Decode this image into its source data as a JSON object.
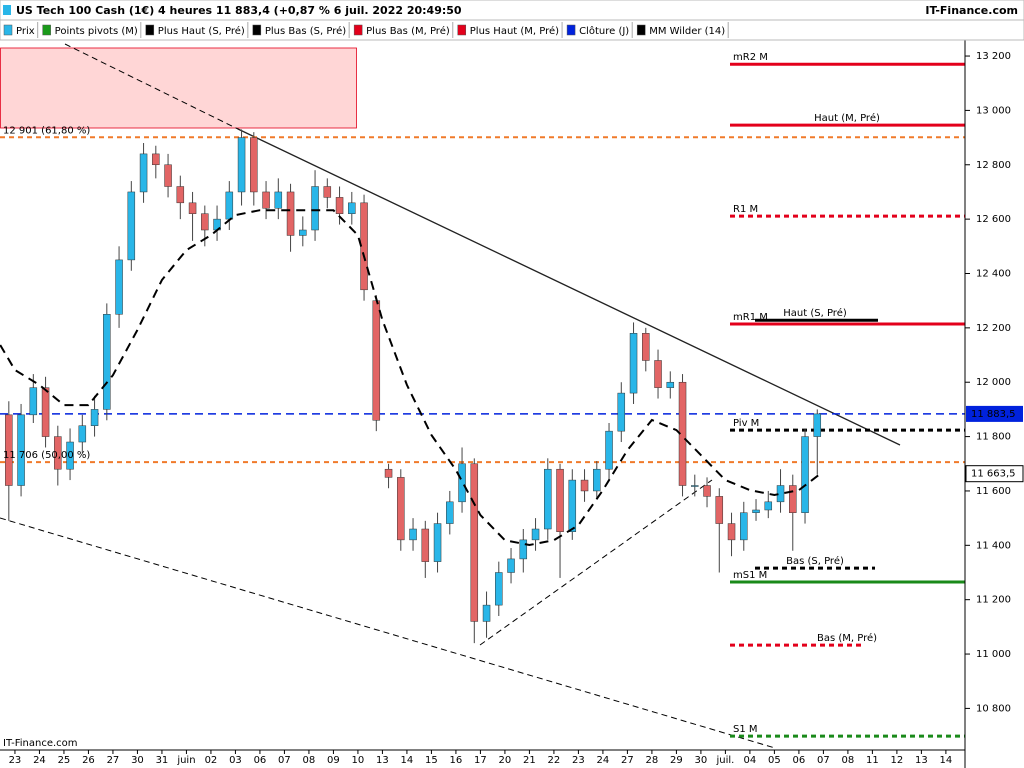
{
  "chart_data": {
    "type": "candlestick",
    "title": "US Tech 100 Cash (1€) 4 heures 11 883,4 (+0,87 % 6 juil. 2022 20:49:50",
    "brand": "IT-Finance.com",
    "footer": "IT-Finance.com",
    "legend": [
      {
        "name": "Prix",
        "color": "#29b6e8"
      },
      {
        "name": "Points pivots (M)",
        "color": "#1a9a1a"
      },
      {
        "name": "Plus Haut (S, Pré)",
        "color": "#000000"
      },
      {
        "name": "Plus Bas (S, Pré)",
        "color": "#000000"
      },
      {
        "name": "Plus Bas (M, Pré)",
        "color": "#e3001b"
      },
      {
        "name": "Plus Haut (M, Pré)",
        "color": "#e3001b"
      },
      {
        "name": "Clôture (J)",
        "color": "#0022dd"
      },
      {
        "name": "MM Wilder (14)",
        "color": "#000000"
      }
    ],
    "up_color": "#29b6e8",
    "down_color": "#e26565",
    "x": [
      -0.25,
      0.25,
      0.75,
      1.25,
      1.75,
      2.25,
      2.75,
      3.25,
      3.75,
      4.25,
      4.75,
      5.25,
      5.75,
      6.25,
      6.75,
      7.25,
      7.75,
      8.25,
      8.75,
      9.25,
      9.75,
      10.25,
      10.75,
      11.25,
      11.75,
      12.25,
      12.75,
      13.25,
      13.75,
      14.25,
      14.75,
      15.25,
      15.75,
      16.25,
      16.75,
      17.25,
      17.75,
      18.25,
      18.75,
      19.25,
      19.75,
      20.25,
      20.75,
      21.25,
      21.75,
      22.25,
      22.75,
      23.25,
      23.75,
      24.25,
      24.75,
      25.25,
      25.75,
      26.25,
      26.75,
      27.25,
      27.75,
      28.25,
      28.75,
      29.25,
      29.75,
      30.25,
      30.75,
      31.25,
      31.75,
      32.25,
      32.75
    ],
    "open": [
      11880,
      11620,
      11880,
      11980,
      11800,
      11680,
      11780,
      11840,
      11900,
      12250,
      12450,
      12700,
      12840,
      12800,
      12720,
      12660,
      12620,
      12560,
      12600,
      12700,
      12900,
      12700,
      12640,
      12700,
      12540,
      12560,
      12720,
      12680,
      12620,
      12660,
      12300,
      11680,
      11650,
      11420,
      11460,
      11340,
      11480,
      11560,
      11700,
      11120,
      11180,
      11300,
      11350,
      11420,
      11460,
      11680,
      11450,
      11640,
      11600,
      11680,
      11820,
      11960,
      12180,
      12080,
      11980,
      12000,
      11620,
      11620,
      11580,
      11480,
      11420,
      11520,
      11530,
      11560,
      11620,
      11520,
      11800
    ],
    "high": [
      11930,
      11920,
      12030,
      12020,
      11840,
      11830,
      11880,
      11950,
      12290,
      12500,
      12740,
      12880,
      12870,
      12840,
      12760,
      12700,
      12650,
      12650,
      12740,
      12930,
      12920,
      12740,
      12750,
      12730,
      12610,
      12780,
      12750,
      12720,
      12700,
      12690,
      12320,
      11700,
      11680,
      11500,
      11490,
      11520,
      11600,
      11760,
      11720,
      11230,
      11340,
      11390,
      11460,
      11500,
      11720,
      11700,
      11680,
      11680,
      11710,
      11850,
      12000,
      12220,
      12200,
      12120,
      12040,
      12030,
      11660,
      11650,
      11610,
      11520,
      11560,
      11570,
      11600,
      11680,
      11660,
      11830,
      11900
    ],
    "low": [
      11490,
      11580,
      11850,
      11760,
      11620,
      11640,
      11740,
      11800,
      11860,
      12200,
      12410,
      12660,
      12750,
      12680,
      12600,
      12520,
      12500,
      12520,
      12560,
      12650,
      12650,
      12600,
      12600,
      12480,
      12500,
      12520,
      12640,
      12580,
      12580,
      12300,
      11820,
      11610,
      11380,
      11380,
      11280,
      11300,
      11440,
      11520,
      11040,
      11060,
      11140,
      11260,
      11300,
      11380,
      11420,
      11280,
      11420,
      11560,
      11570,
      11640,
      11780,
      11920,
      12040,
      11940,
      11940,
      11580,
      11580,
      11540,
      11300,
      11360,
      11380,
      11490,
      11500,
      11520,
      11380,
      11480,
      11660
    ],
    "close": [
      11620,
      11880,
      11980,
      11800,
      11680,
      11780,
      11840,
      11900,
      12250,
      12450,
      12700,
      12840,
      12800,
      12720,
      12660,
      12620,
      12560,
      12600,
      12700,
      12900,
      12700,
      12640,
      12700,
      12540,
      12560,
      12720,
      12680,
      12620,
      12660,
      12340,
      11860,
      11650,
      11420,
      11460,
      11340,
      11480,
      11560,
      11700,
      11120,
      11180,
      11300,
      11350,
      11420,
      11460,
      11680,
      11450,
      11640,
      11600,
      11680,
      11820,
      11960,
      12180,
      12080,
      11980,
      12000,
      11620,
      11620,
      11580,
      11480,
      11420,
      11520,
      11530,
      11560,
      11620,
      11520,
      11800,
      11883.5
    ],
    "series": [
      {
        "name": "MM Wilder (14)",
        "color": "#000000",
        "x": [
          -0.6,
          0,
          1,
          2,
          3,
          4,
          5,
          6,
          7,
          8,
          9,
          10,
          11,
          12,
          13,
          14,
          15,
          16,
          17,
          18,
          19,
          20,
          21,
          22,
          23,
          24,
          25,
          26,
          27,
          28,
          29,
          30,
          31,
          32,
          32.8
        ],
        "values": [
          12137,
          12045,
          11990,
          11916,
          11916,
          12026,
          12192,
          12376,
          12486,
          12541,
          12615,
          12633,
          12633,
          12633,
          12633,
          12541,
          12229,
          11990,
          11806,
          11677,
          11511,
          11419,
          11401,
          11419,
          11474,
          11603,
          11750,
          11861,
          11824,
          11732,
          11640,
          11603,
          11585,
          11603,
          11658
        ]
      }
    ],
    "levels": [
      {
        "label": "mR2 M",
        "value": 13170,
        "color": "#e3001b",
        "style": "solid"
      },
      {
        "label": "Haut (M, Pré)",
        "value": 12946,
        "color": "#e3001b",
        "style": "solid"
      },
      {
        "label": "R1 M",
        "value": 12611,
        "color": "#e3001b",
        "style": "dashed"
      },
      {
        "label": "mR1 M",
        "value": 12214,
        "color": "#e3001b",
        "style": "solid"
      },
      {
        "label": "Haut (S, Pré)",
        "value": 12228,
        "color": "#000000",
        "style": "solid"
      },
      {
        "label": "Piv M",
        "value": 11824,
        "color": "#000000",
        "style": "dashed"
      },
      {
        "label": "Bas (S, Pré)",
        "value": 11316,
        "color": "#000000",
        "style": "dashed"
      },
      {
        "label": "mS1 M",
        "value": 11265,
        "color": "#1a8a1a",
        "style": "solid"
      },
      {
        "label": "Bas (M, Pré)",
        "value": 11033,
        "color": "#e3001b",
        "style": "dashed"
      },
      {
        "label": "S1 M",
        "value": 10698,
        "color": "#1a8a1a",
        "style": "dashed"
      }
    ],
    "fibonacci": [
      {
        "label": "12 901 (61,80 %)",
        "value": 12901,
        "color": "#f07a2a"
      },
      {
        "label": "11 706 (50,00 %)",
        "value": 11706,
        "color": "#f07a2a"
      }
    ],
    "close_line": {
      "value": 11883.5,
      "label": "11 883,5",
      "color": "#0022dd"
    },
    "ma_marker": {
      "value": 11663.5,
      "label": "11 663,5"
    },
    "xlim": [
      -0.61,
      38.78
    ],
    "xticks": [
      {
        "value": 0,
        "label": "23"
      },
      {
        "value": 1,
        "label": "24"
      },
      {
        "value": 2,
        "label": "25"
      },
      {
        "value": 3,
        "label": "26"
      },
      {
        "value": 4,
        "label": "27"
      },
      {
        "value": 5,
        "label": "30"
      },
      {
        "value": 6,
        "label": "31"
      },
      {
        "value": 7,
        "label": "juin"
      },
      {
        "value": 8,
        "label": "02"
      },
      {
        "value": 9,
        "label": "03"
      },
      {
        "value": 10,
        "label": "06"
      },
      {
        "value": 11,
        "label": "07"
      },
      {
        "value": 12,
        "label": "08"
      },
      {
        "value": 13,
        "label": "09"
      },
      {
        "value": 14,
        "label": "10"
      },
      {
        "value": 15,
        "label": "13"
      },
      {
        "value": 16,
        "label": "14"
      },
      {
        "value": 17,
        "label": "15"
      },
      {
        "value": 18,
        "label": "16"
      },
      {
        "value": 19,
        "label": "17"
      },
      {
        "value": 20,
        "label": "20"
      },
      {
        "value": 21,
        "label": "21"
      },
      {
        "value": 22,
        "label": "22"
      },
      {
        "value": 23,
        "label": "23"
      },
      {
        "value": 24,
        "label": "24"
      },
      {
        "value": 25,
        "label": "27"
      },
      {
        "value": 26,
        "label": "28"
      },
      {
        "value": 27,
        "label": "29"
      },
      {
        "value": 28,
        "label": "30"
      },
      {
        "value": 29,
        "label": "juil."
      },
      {
        "value": 30,
        "label": "04"
      },
      {
        "value": 31,
        "label": "05"
      },
      {
        "value": 32,
        "label": "06"
      },
      {
        "value": 33,
        "label": "07"
      },
      {
        "value": 34,
        "label": "08"
      },
      {
        "value": 35,
        "label": "11"
      },
      {
        "value": 36,
        "label": "12"
      },
      {
        "value": 37,
        "label": "13"
      },
      {
        "value": 38,
        "label": "14"
      }
    ],
    "ylim": [
      10647,
      13259
    ],
    "yticks": [
      {
        "value": 10800,
        "label": "10 800"
      },
      {
        "value": 11000,
        "label": "11 000"
      },
      {
        "value": 11200,
        "label": "11 200"
      },
      {
        "value": 11400,
        "label": "11 400"
      },
      {
        "value": 11600,
        "label": "11 600"
      },
      {
        "value": 11800,
        "label": "11 800"
      },
      {
        "value": 12000,
        "label": "12 000"
      },
      {
        "value": 12200,
        "label": "12 200"
      },
      {
        "value": 12400,
        "label": "12 400"
      },
      {
        "value": 12600,
        "label": "12 600"
      },
      {
        "value": 12800,
        "label": "12 800"
      },
      {
        "value": 13000,
        "label": "13 000"
      },
      {
        "value": 13200,
        "label": "13 200"
      }
    ]
  }
}
